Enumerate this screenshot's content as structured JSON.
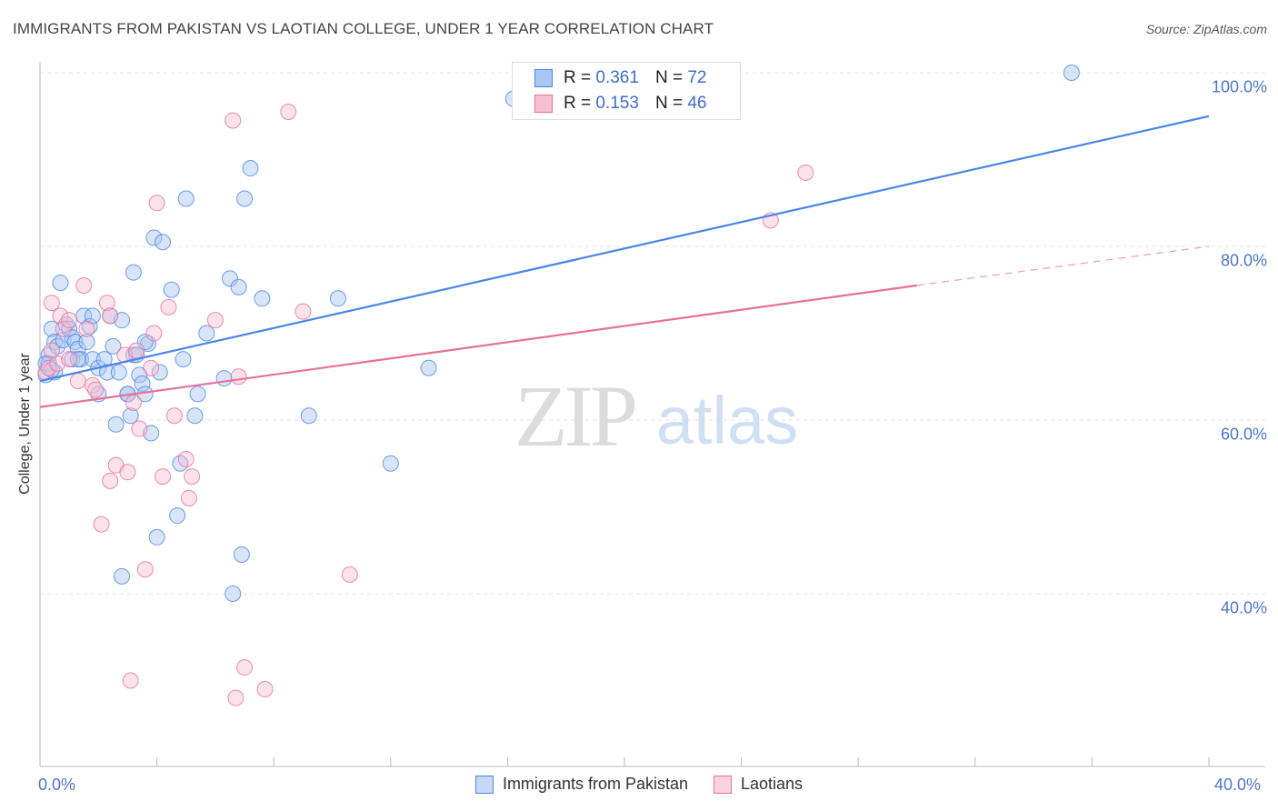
{
  "title": "IMMIGRANTS FROM PAKISTAN VS LAOTIAN COLLEGE, UNDER 1 YEAR CORRELATION CHART",
  "source": "Source: ZipAtlas.com",
  "watermark": {
    "zip": "ZIP",
    "atlas": "atlas"
  },
  "colors": {
    "blue": "#4a86e8",
    "blue_fill": "#a9c6f2",
    "pink": "#e8709a",
    "pink_fill": "#f6bfd2",
    "axis_text": "#4a78c8"
  },
  "legend_top": {
    "r_label": "R =",
    "n_label": "N =",
    "blue": {
      "r": "0.361",
      "n": "72"
    },
    "pink": {
      "r": "0.153",
      "n": "46"
    }
  },
  "legend_bottom": {
    "blue": "Immigrants from Pakistan",
    "pink": "Laotians"
  },
  "chart_data": {
    "type": "scatter",
    "title": "IMMIGRANTS FROM PAKISTAN VS LAOTIAN COLLEGE, UNDER 1 YEAR CORRELATION CHART",
    "xlabel": "",
    "ylabel": "College, Under 1 year",
    "xlim": [
      0,
      40
    ],
    "ylim": [
      22,
      102
    ],
    "x_ticks": [
      "0.0%",
      "40.0%"
    ],
    "y_ticks": [
      {
        "value": 40,
        "label": "40.0%"
      },
      {
        "value": 60,
        "label": "60.0%"
      },
      {
        "value": 80,
        "label": "80.0%"
      },
      {
        "value": 100,
        "label": "100.0%"
      }
    ],
    "grid": true,
    "legend_position": "top-center",
    "series": [
      {
        "name": "Immigrants from Pakistan",
        "color": "#4a86e8",
        "trend": {
          "x0": 0,
          "y0": 64.5,
          "x1": 40,
          "y1": 95
        },
        "points": [
          [
            0.2,
            65.2
          ],
          [
            0.3,
            67.5
          ],
          [
            0.3,
            66.5
          ],
          [
            0.4,
            70.5
          ],
          [
            0.5,
            65.5
          ],
          [
            0.5,
            69
          ],
          [
            0.6,
            68.5
          ],
          [
            0.7,
            75.8
          ],
          [
            0.8,
            69.2
          ],
          [
            0.9,
            71
          ],
          [
            1.0,
            70.5
          ],
          [
            1.1,
            69.5
          ],
          [
            1.1,
            67
          ],
          [
            1.2,
            69
          ],
          [
            1.3,
            68.2
          ],
          [
            1.4,
            67
          ],
          [
            1.5,
            72
          ],
          [
            1.6,
            69
          ],
          [
            1.7,
            70.8
          ],
          [
            1.8,
            67
          ],
          [
            2.0,
            66
          ],
          [
            2.0,
            63
          ],
          [
            2.2,
            67
          ],
          [
            2.3,
            65.5
          ],
          [
            2.4,
            72
          ],
          [
            2.5,
            68.5
          ],
          [
            2.6,
            59.5
          ],
          [
            2.7,
            65.5
          ],
          [
            2.8,
            71.5
          ],
          [
            3.0,
            63
          ],
          [
            3.0,
            63
          ],
          [
            3.1,
            60.5
          ],
          [
            3.2,
            67.5
          ],
          [
            3.2,
            77
          ],
          [
            3.3,
            67.5
          ],
          [
            3.4,
            65.2
          ],
          [
            3.5,
            64.2
          ],
          [
            3.6,
            63
          ],
          [
            3.7,
            68.8
          ],
          [
            3.8,
            58.5
          ],
          [
            3.9,
            81
          ],
          [
            4.0,
            46.5
          ],
          [
            4.1,
            65.5
          ],
          [
            4.2,
            80.5
          ],
          [
            4.5,
            75
          ],
          [
            4.7,
            49
          ],
          [
            4.8,
            55
          ],
          [
            4.9,
            67
          ],
          [
            5.0,
            85.5
          ],
          [
            5.3,
            60.5
          ],
          [
            5.4,
            63
          ],
          [
            5.7,
            70
          ],
          [
            6.3,
            64.8
          ],
          [
            6.5,
            76.3
          ],
          [
            6.6,
            40
          ],
          [
            6.8,
            75.3
          ],
          [
            6.9,
            44.5
          ],
          [
            7.0,
            85.5
          ],
          [
            7.2,
            89
          ],
          [
            7.6,
            74
          ],
          [
            9.2,
            60.5
          ],
          [
            10.2,
            74
          ],
          [
            12.0,
            55
          ],
          [
            13.3,
            66
          ],
          [
            16.2,
            97
          ],
          [
            35.3,
            100
          ],
          [
            1.8,
            72
          ],
          [
            2.8,
            42
          ],
          [
            0.2,
            66.5
          ],
          [
            1.3,
            67
          ],
          [
            3.6,
            69
          ],
          [
            0.4,
            65.8
          ]
        ]
      },
      {
        "name": "Laotians",
        "color": "#e8709a",
        "trend": {
          "x0": 0,
          "y0": 61.5,
          "x1": 30,
          "y1": 75.5
        },
        "trend_dashed": {
          "x0": 30,
          "y0": 75.5,
          "x1": 40,
          "y1": 80
        },
        "points": [
          [
            0.2,
            65.5
          ],
          [
            0.3,
            66
          ],
          [
            0.4,
            68
          ],
          [
            0.4,
            73.5
          ],
          [
            0.6,
            66.5
          ],
          [
            0.7,
            72
          ],
          [
            0.8,
            70.5
          ],
          [
            1.0,
            67
          ],
          [
            1.0,
            71.5
          ],
          [
            1.3,
            64.5
          ],
          [
            1.5,
            75.5
          ],
          [
            1.6,
            70.5
          ],
          [
            1.8,
            64
          ],
          [
            1.9,
            63.5
          ],
          [
            2.1,
            48
          ],
          [
            2.3,
            73.5
          ],
          [
            2.4,
            72
          ],
          [
            2.4,
            53
          ],
          [
            2.6,
            54.8
          ],
          [
            2.9,
            67.5
          ],
          [
            3.0,
            54
          ],
          [
            3.1,
            30
          ],
          [
            3.2,
            62
          ],
          [
            3.3,
            68
          ],
          [
            3.4,
            59
          ],
          [
            3.6,
            42.8
          ],
          [
            3.8,
            66
          ],
          [
            3.9,
            70
          ],
          [
            4.0,
            85
          ],
          [
            4.2,
            53.5
          ],
          [
            4.4,
            73
          ],
          [
            4.6,
            60.5
          ],
          [
            5.0,
            55.5
          ],
          [
            5.1,
            51
          ],
          [
            5.2,
            53.5
          ],
          [
            6.0,
            71.5
          ],
          [
            6.6,
            94.5
          ],
          [
            6.7,
            28
          ],
          [
            6.8,
            65
          ],
          [
            7.0,
            31.5
          ],
          [
            7.7,
            29
          ],
          [
            8.5,
            95.5
          ],
          [
            9.0,
            72.5
          ],
          [
            10.6,
            42.2
          ],
          [
            25.0,
            83
          ],
          [
            26.2,
            88.5
          ]
        ]
      }
    ]
  }
}
